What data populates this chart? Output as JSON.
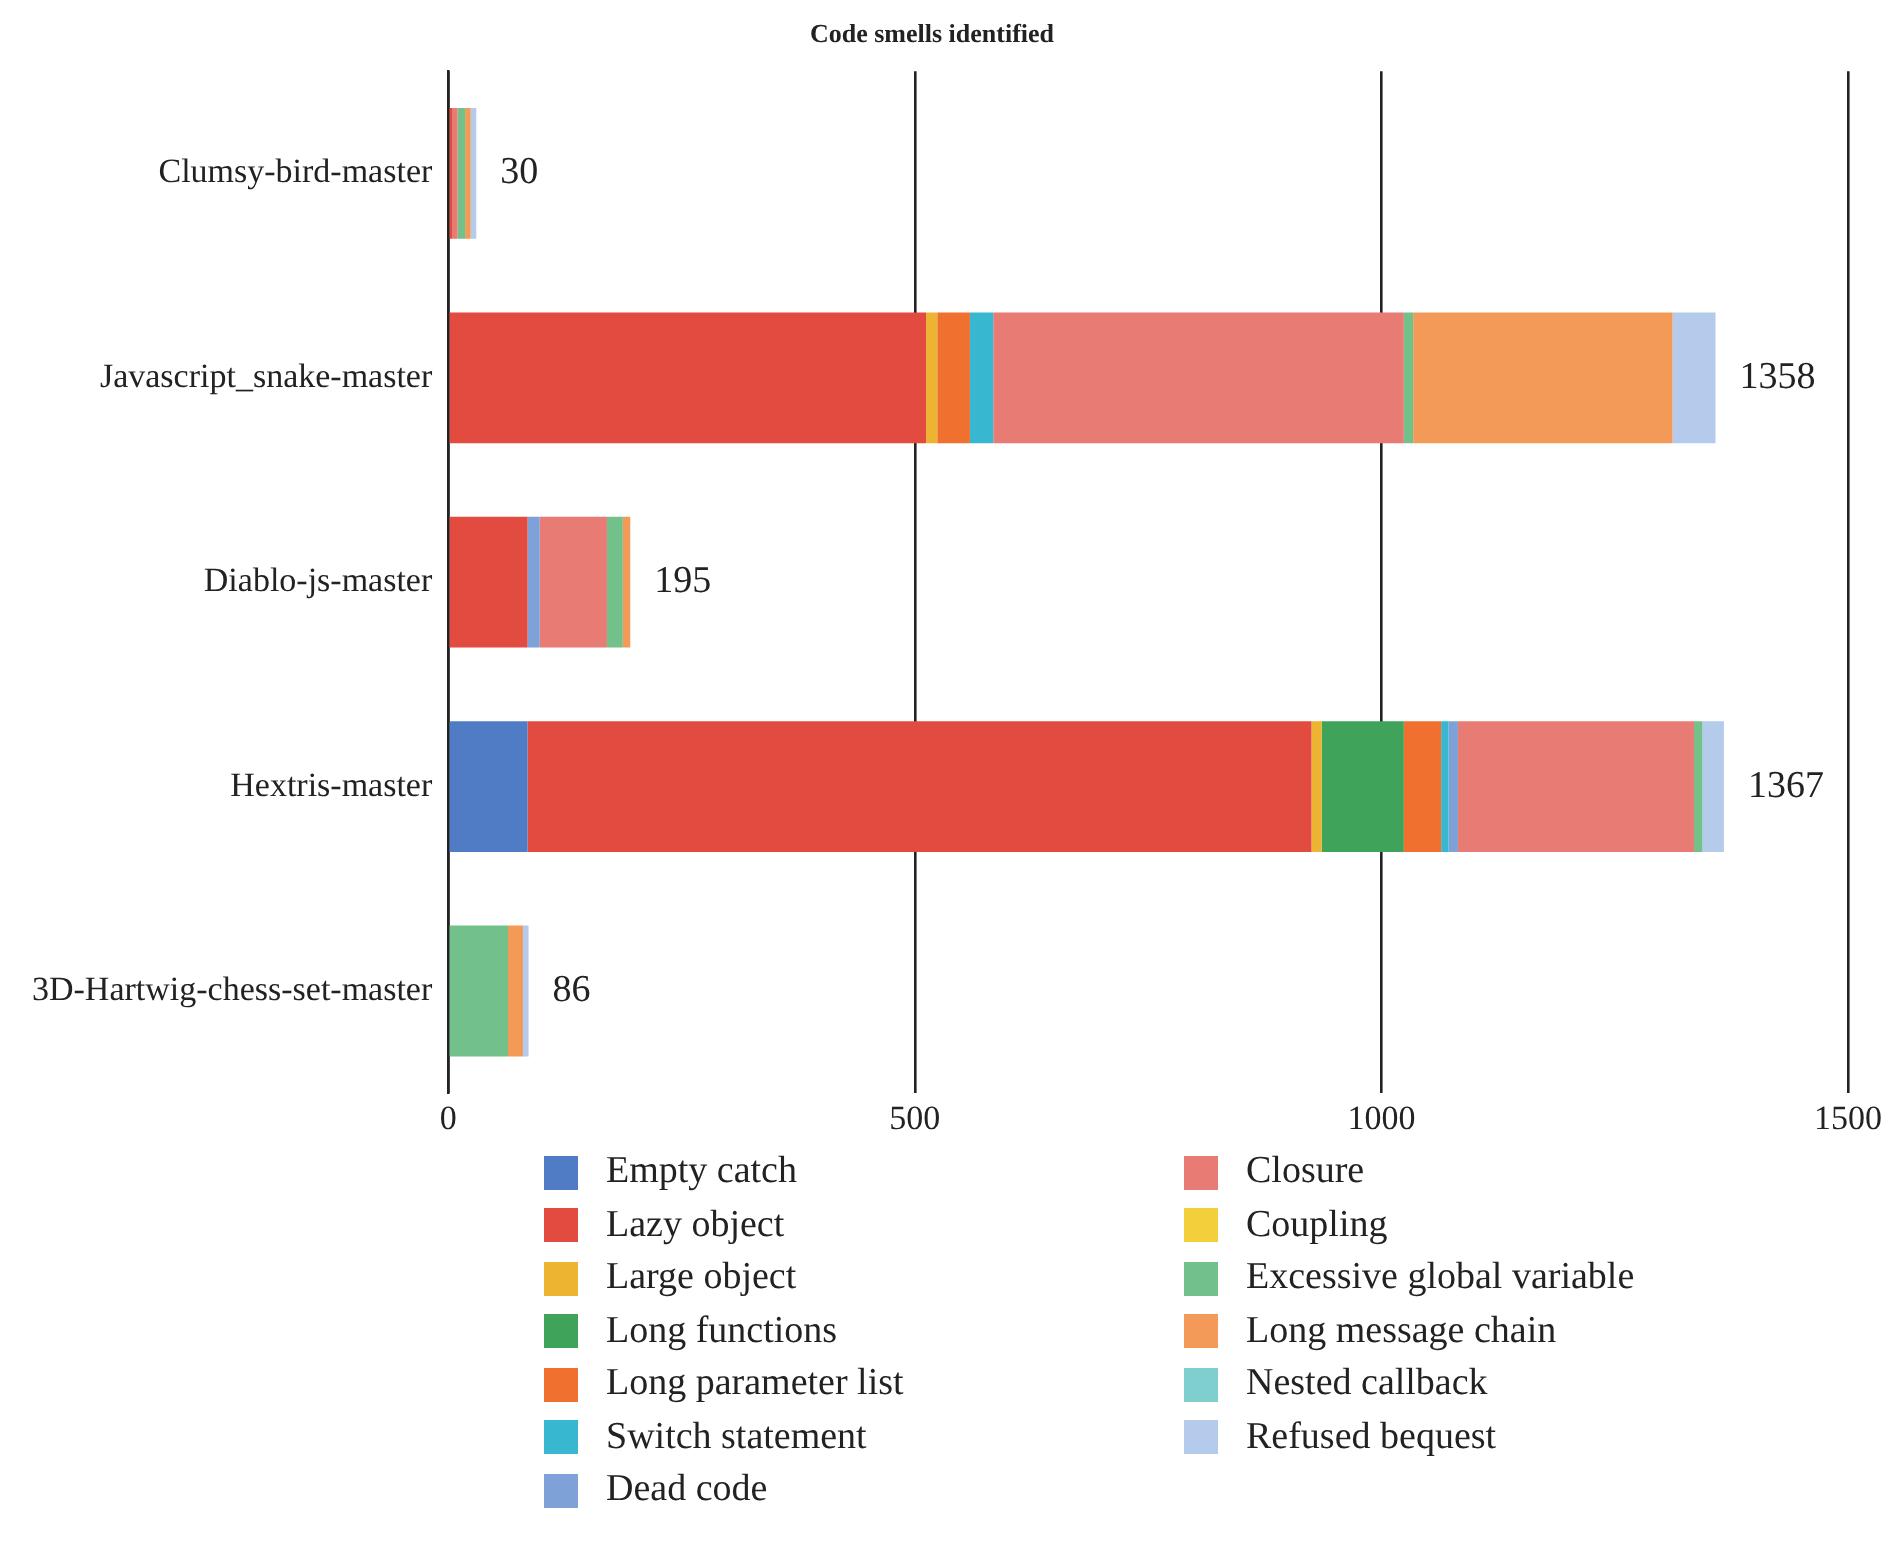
{
  "chart_data": {
    "type": "bar",
    "orientation": "horizontal",
    "stacked": true,
    "title": "Code smells identified",
    "categories": [
      "Clumsy-bird-master",
      "Javascript_snake-master",
      "Diablo-js-master",
      "Hextris-master",
      "3D-Hartwig-chess-set-master"
    ],
    "series": [
      {
        "name": "Empty catch",
        "color": "#4f7cc4",
        "values": [
          0,
          0,
          0,
          85,
          0
        ]
      },
      {
        "name": "Lazy object",
        "color": "#e24b3f",
        "values": [
          4,
          512,
          85,
          840,
          0
        ]
      },
      {
        "name": "Large object",
        "color": "#ecb431",
        "values": [
          0,
          12,
          0,
          11,
          0
        ]
      },
      {
        "name": "Long functions",
        "color": "#3fa35a",
        "values": [
          0,
          0,
          0,
          88,
          0
        ]
      },
      {
        "name": "Long parameter list",
        "color": "#f07030",
        "values": [
          0,
          35,
          0,
          40,
          0
        ]
      },
      {
        "name": "Switch statement",
        "color": "#38b8d0",
        "values": [
          0,
          25,
          0,
          8,
          0
        ]
      },
      {
        "name": "Dead code",
        "color": "#7ea2d8",
        "values": [
          0,
          0,
          13,
          10,
          0
        ]
      },
      {
        "name": "Closure",
        "color": "#e87b73",
        "values": [
          6,
          440,
          72,
          253,
          0
        ]
      },
      {
        "name": "Coupling",
        "color": "#f3cf3b",
        "values": [
          0,
          0,
          0,
          0,
          0
        ]
      },
      {
        "name": "Excessive global variable",
        "color": "#72c08a",
        "values": [
          8,
          10,
          17,
          9,
          64
        ]
      },
      {
        "name": "Long message chain",
        "color": "#f39a58",
        "values": [
          6,
          278,
          8,
          0,
          16
        ]
      },
      {
        "name": "Nested callback",
        "color": "#7fcfcf",
        "values": [
          0,
          0,
          0,
          0,
          0
        ]
      },
      {
        "name": "Refused bequest",
        "color": "#b4cbec",
        "values": [
          6,
          46,
          0,
          23,
          6
        ]
      }
    ],
    "totals": [
      "30",
      "1358",
      "195",
      "1367",
      "86"
    ],
    "xlim": [
      0,
      1500
    ],
    "xticks": [
      0,
      500,
      1000,
      1500
    ],
    "grid": "x",
    "legend": "bottom"
  }
}
